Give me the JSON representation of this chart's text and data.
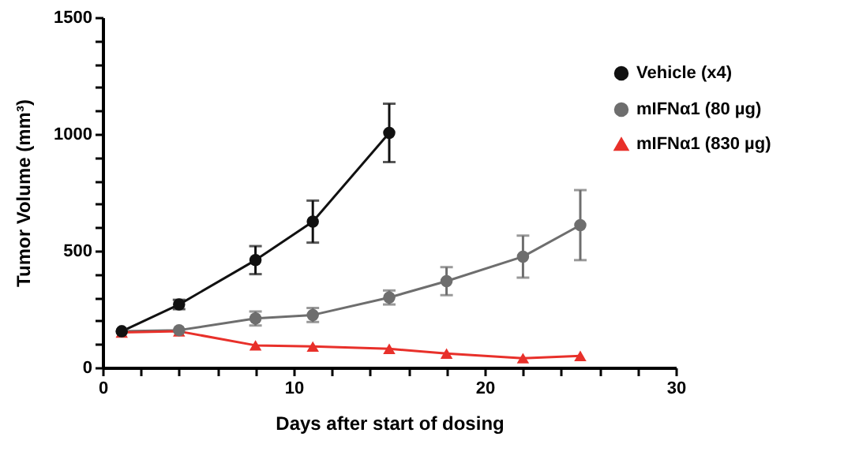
{
  "chart_data": {
    "type": "line",
    "xlabel": "Days after start of dosing",
    "ylabel": "Tumor Volume (mm³)",
    "xlim": [
      0,
      30
    ],
    "ylim": [
      0,
      1500
    ],
    "xticks": [
      0,
      {
        "value": 2,
        "label": null
      },
      {
        "value": 4,
        "label": null
      },
      {
        "value": 6,
        "label": null
      },
      {
        "value": 8,
        "label": null
      },
      10,
      {
        "value": 12,
        "label": null
      },
      {
        "value": 14,
        "label": null
      },
      {
        "value": 16,
        "label": null
      },
      {
        "value": 18,
        "label": null
      },
      20,
      {
        "value": 22,
        "label": null
      },
      {
        "value": 24,
        "label": null
      },
      {
        "value": 26,
        "label": null
      },
      {
        "value": 28,
        "label": null
      },
      30
    ],
    "yticks": [
      0,
      {
        "value": 100,
        "label": null
      },
      {
        "value": 200,
        "label": null
      },
      {
        "value": 300,
        "label": null
      },
      {
        "value": 400,
        "label": null
      },
      500,
      {
        "value": 600,
        "label": null
      },
      {
        "value": 700,
        "label": null
      },
      {
        "value": 800,
        "label": null
      },
      {
        "value": 900,
        "label": null
      },
      1000,
      {
        "value": 1100,
        "label": null
      },
      {
        "value": 1200,
        "label": null
      },
      {
        "value": 1300,
        "label": null
      },
      {
        "value": 1400,
        "label": null
      },
      1500
    ],
    "grid": false,
    "legend": "right",
    "line_style": "solid",
    "series": [
      {
        "name": "Vehicle (x4)",
        "color": "#111111",
        "marker": "circle",
        "x": [
          1,
          4,
          8,
          11,
          15
        ],
        "values": [
          155,
          270,
          460,
          625,
          1005
        ],
        "errors": [
          null,
          20,
          60,
          90,
          125
        ]
      },
      {
        "name": "mIFNα1 (80 µg)",
        "color": "#6e6e6e",
        "marker": "circle",
        "x": [
          1,
          4,
          8,
          11,
          15,
          18,
          22,
          25
        ],
        "values": [
          155,
          160,
          210,
          225,
          300,
          370,
          475,
          610
        ],
        "errors": [
          null,
          null,
          30,
          30,
          30,
          60,
          90,
          150
        ]
      },
      {
        "name": "mIFNα1 (830 µg)",
        "color": "#e8302a",
        "marker": "triangle",
        "x": [
          1,
          4,
          8,
          11,
          15,
          18,
          22,
          25
        ],
        "values": [
          150,
          155,
          95,
          90,
          80,
          60,
          40,
          50
        ]
      }
    ]
  }
}
